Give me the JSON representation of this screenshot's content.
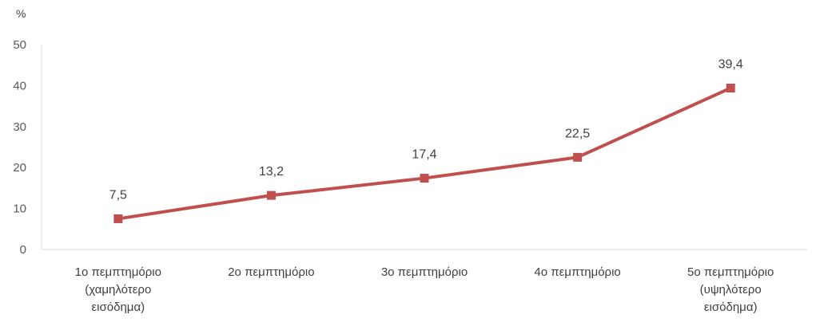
{
  "chart_data": {
    "type": "line",
    "unit_label": "%",
    "categories": [
      [
        "1ο πεμπτημόριο",
        "(χαμηλότερο",
        "εισόδημα)"
      ],
      [
        "2ο πεμπτημόριο"
      ],
      [
        "3ο πεμπτημόριο"
      ],
      [
        "4ο πεμπτημόριο"
      ],
      [
        "5ο πεμπτημόριο",
        "(υψηλότερο",
        "εισόδημα)"
      ]
    ],
    "series": [
      {
        "values": [
          7.5,
          13.2,
          17.4,
          22.5,
          39.4
        ],
        "color": "#C0504D"
      }
    ],
    "data_labels": [
      "7,5",
      "13,2",
      "17,4",
      "22,5",
      "39,4"
    ],
    "ylim": [
      0,
      50
    ],
    "yticks": [
      0,
      10,
      20,
      30,
      40,
      50
    ],
    "grid": false,
    "marker": "square"
  }
}
